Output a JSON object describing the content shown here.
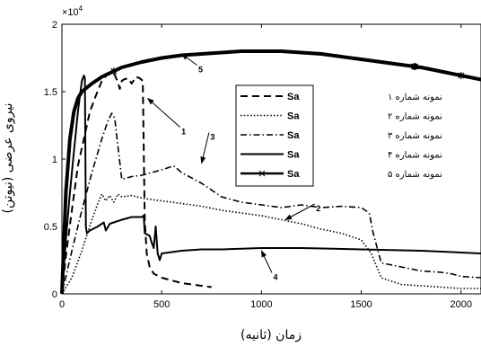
{
  "chart_data": {
    "type": "line",
    "xlabel": "زمان (ثانیه)",
    "ylabel": "نیروی عرضی (نیوتن)",
    "xlim": [
      0,
      2100
    ],
    "ylim": [
      0,
      2
    ],
    "y_exponent_label": "×10",
    "y_exponent_power": "4",
    "x_ticks": [
      {
        "value": 0,
        "label": "0"
      },
      {
        "value": 500,
        "label": "500"
      },
      {
        "value": 1000,
        "label": "1000"
      },
      {
        "value": 1500,
        "label": "1500"
      },
      {
        "value": 2000,
        "label": "2000"
      }
    ],
    "y_ticks": [
      {
        "value": 0,
        "label": "0"
      },
      {
        "value": 0.5,
        "label": "0.5"
      },
      {
        "value": 1,
        "label": "1"
      },
      {
        "value": 1.5,
        "label": "1.5"
      },
      {
        "value": 2,
        "label": "2"
      }
    ],
    "grid": false,
    "legend_position": "center-right",
    "series": [
      {
        "name": "نمونه شماره ۱",
        "legend_clip": "Sa",
        "style": "dashed",
        "color": "#000000",
        "x": [
          0,
          20,
          50,
          80,
          110,
          140,
          170,
          200,
          230,
          260,
          280,
          290,
          300,
          310,
          330,
          350,
          370,
          390,
          405,
          415,
          425,
          440,
          460,
          500,
          550,
          600,
          650,
          700,
          750
        ],
        "y": [
          0,
          0.28,
          0.62,
          0.95,
          1.15,
          1.35,
          1.47,
          1.58,
          1.63,
          1.64,
          1.57,
          1.52,
          1.58,
          1.59,
          1.6,
          1.56,
          1.61,
          1.6,
          1.58,
          0.55,
          0.3,
          0.2,
          0.15,
          0.12,
          0.1,
          0.08,
          0.07,
          0.06,
          0.05
        ]
      },
      {
        "name": "نمونه شماره ۲",
        "legend_clip": "Sa",
        "style": "dotted",
        "color": "#000000",
        "x": [
          0,
          50,
          100,
          150,
          180,
          200,
          220,
          240,
          260,
          280,
          300,
          350,
          400,
          450,
          500,
          600,
          700,
          800,
          900,
          1000,
          1100,
          1200,
          1300,
          1400,
          1500,
          1550,
          1600,
          1700,
          1800,
          1900,
          2000,
          2100
        ],
        "y": [
          0,
          0.12,
          0.32,
          0.55,
          0.67,
          0.74,
          0.69,
          0.73,
          0.68,
          0.74,
          0.72,
          0.73,
          0.71,
          0.7,
          0.69,
          0.67,
          0.65,
          0.62,
          0.6,
          0.58,
          0.55,
          0.52,
          0.48,
          0.45,
          0.4,
          0.3,
          0.12,
          0.07,
          0.06,
          0.05,
          0.04,
          0.04
        ]
      },
      {
        "name": "نمونه شماره ۳",
        "legend_clip": "Sa",
        "style": "dashdot",
        "color": "#000000",
        "x": [
          0,
          50,
          100,
          150,
          200,
          230,
          250,
          265,
          280,
          300,
          350,
          400,
          500,
          560,
          600,
          700,
          800,
          900,
          1000,
          1100,
          1200,
          1300,
          1400,
          1500,
          1540,
          1560,
          1600,
          1700,
          1800,
          1900,
          1950,
          2000,
          2100
        ],
        "y": [
          0,
          0.32,
          0.62,
          0.9,
          1.15,
          1.28,
          1.34,
          1.3,
          1.1,
          0.85,
          0.87,
          0.88,
          0.92,
          0.95,
          0.9,
          0.82,
          0.72,
          0.68,
          0.66,
          0.64,
          0.66,
          0.64,
          0.65,
          0.64,
          0.6,
          0.45,
          0.23,
          0.2,
          0.17,
          0.16,
          0.15,
          0.13,
          0.12
        ]
      },
      {
        "name": "نمونه شماره ۴",
        "legend_clip": "Sa",
        "style": "solid",
        "color": "#000000",
        "x": [
          0,
          20,
          40,
          60,
          80,
          100,
          110,
          115,
          120,
          125,
          140,
          180,
          210,
          220,
          240,
          300,
          350,
          400,
          410,
          415,
          440,
          450,
          460,
          470,
          480,
          490,
          500,
          600,
          700,
          800,
          1000,
          1200,
          1500,
          1800,
          2100
        ],
        "y": [
          0,
          0.4,
          0.75,
          1.05,
          1.35,
          1.58,
          1.62,
          1.6,
          0.5,
          0.45,
          0.47,
          0.5,
          0.53,
          0.47,
          0.52,
          0.55,
          0.57,
          0.57,
          0.58,
          0.45,
          0.43,
          0.38,
          0.34,
          0.5,
          0.3,
          0.25,
          0.3,
          0.32,
          0.33,
          0.33,
          0.34,
          0.34,
          0.33,
          0.32,
          0.3
        ]
      },
      {
        "name": "نمونه شماره ۵",
        "legend_clip": "Sa",
        "style": "solid-star",
        "color": "#000000",
        "x": [
          0,
          20,
          40,
          60,
          80,
          100,
          150,
          200,
          300,
          400,
          500,
          600,
          700,
          800,
          900,
          1000,
          1100,
          1200,
          1300,
          1400,
          1500,
          1600,
          1700,
          1800,
          1900,
          2000,
          2100
        ],
        "y": [
          0,
          0.75,
          1.15,
          1.35,
          1.45,
          1.5,
          1.56,
          1.61,
          1.68,
          1.72,
          1.75,
          1.77,
          1.78,
          1.79,
          1.8,
          1.8,
          1.8,
          1.79,
          1.78,
          1.76,
          1.74,
          1.72,
          1.7,
          1.68,
          1.65,
          1.62,
          1.59
        ],
        "markers_x": [
          260,
          1765,
          1770,
          2000
        ]
      }
    ],
    "annotations": [
      {
        "label": "1",
        "text_x": 610,
        "text_y": 1.21,
        "arrow_to_x": 430,
        "arrow_to_y": 1.45
      },
      {
        "label": "2",
        "text_x": 1285,
        "text_y": 0.64,
        "arrow_to_x": 1120,
        "arrow_to_y": 0.55
      },
      {
        "label": "3",
        "text_x": 755,
        "text_y": 1.17,
        "arrow_to_x": 700,
        "arrow_to_y": 0.97
      },
      {
        "label": "4",
        "text_x": 1070,
        "text_y": 0.13,
        "arrow_to_x": 1000,
        "arrow_to_y": 0.32
      },
      {
        "label": "5",
        "text_x": 695,
        "text_y": 1.67,
        "arrow_to_x": 600,
        "arrow_to_y": 1.78
      }
    ]
  }
}
